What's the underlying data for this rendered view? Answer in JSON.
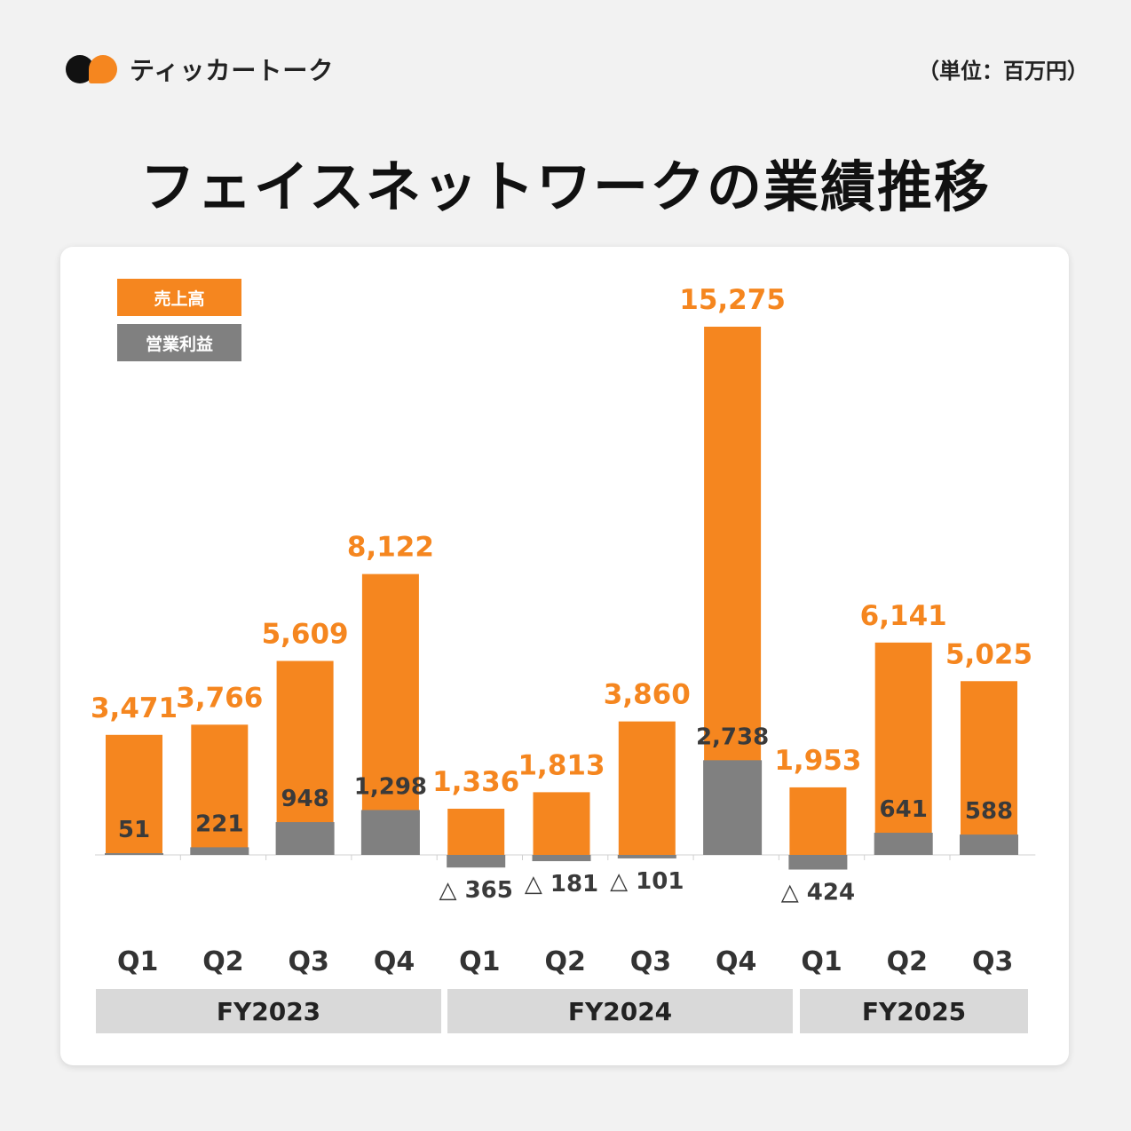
{
  "brand": {
    "name": "ティッカートーク",
    "colors": {
      "black": "#111111",
      "orange": "#f5861f"
    }
  },
  "unit_label": "（単位：百万円）",
  "page_title": "フェイスネットワークの業績推移",
  "legend": [
    {
      "label": "売上高",
      "color": "#f5861f"
    },
    {
      "label": "営業利益",
      "color": "#808080"
    }
  ],
  "fiscal_years": [
    "FY2023",
    "FY2024",
    "FY2025"
  ],
  "chart_data": {
    "type": "bar",
    "title": "フェイスネットワークの業績推移",
    "unit": "百万円",
    "categories": [
      "Q1",
      "Q2",
      "Q3",
      "Q4",
      "Q1",
      "Q2",
      "Q3",
      "Q4",
      "Q1",
      "Q2",
      "Q3"
    ],
    "groups": [
      {
        "name": "FY2023",
        "count": 4
      },
      {
        "name": "FY2024",
        "count": 4
      },
      {
        "name": "FY2025",
        "count": 3
      }
    ],
    "series": [
      {
        "name": "売上高",
        "color": "#f5861f",
        "label_color": "#f5861f",
        "values": [
          3471,
          3766,
          5609,
          8122,
          1336,
          1813,
          3860,
          15275,
          1953,
          6141,
          5025
        ],
        "labels": [
          "3,471",
          "3,766",
          "5,609",
          "8,122",
          "1,336",
          "1,813",
          "3,860",
          "15,275",
          "1,953",
          "6,141",
          "5,025"
        ]
      },
      {
        "name": "営業利益",
        "color": "#808080",
        "label_color": "#3a3a3a",
        "values": [
          51,
          221,
          948,
          1298,
          -365,
          -181,
          -101,
          2738,
          -424,
          641,
          588
        ],
        "labels": [
          "51",
          "221",
          "948",
          "1,298",
          "△ 365",
          "△ 181",
          "△ 101",
          "2,738",
          "△ 424",
          "641",
          "588"
        ]
      }
    ],
    "ylim": [
      -1000,
      16000
    ],
    "xlabel": "",
    "ylabel": "",
    "grid": false,
    "legend_position": "top-left"
  }
}
